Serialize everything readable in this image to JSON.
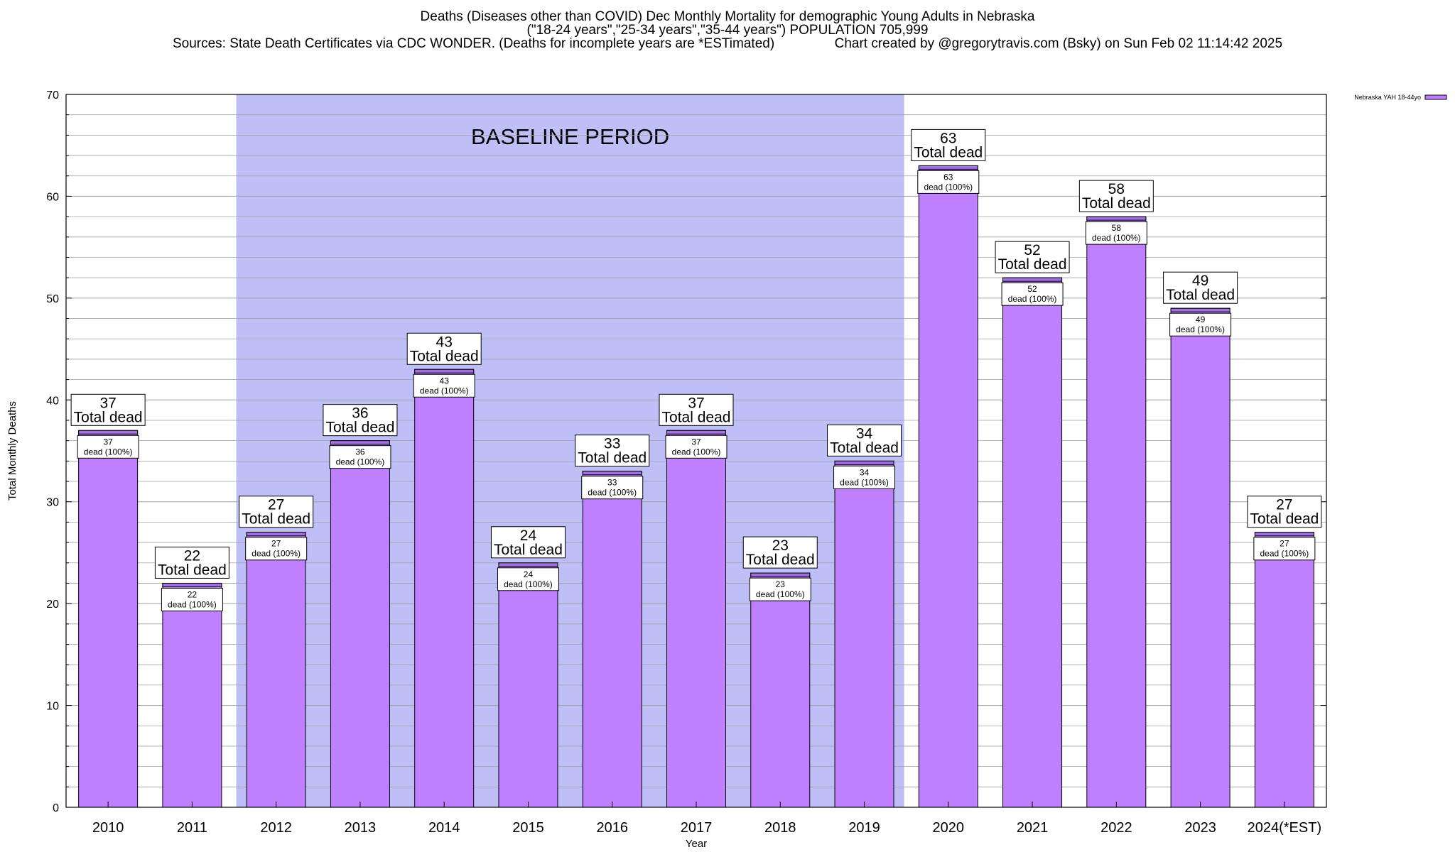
{
  "titles": {
    "line1": "Deaths (Diseases other than COVID) Dec Monthly Mortality for demographic Young Adults in Nebraska",
    "line2": "(\"18-24 years\",\"25-34 years\",\"35-44 years\") POPULATION 705,999",
    "line3": "Sources: State Death Certificates via CDC WONDER. (Deaths for incomplete years are *ESTimated)                Chart created by @gregorytravis.com (Bsky) on Sun Feb 02 11:14:42 2025"
  },
  "chart_data": {
    "type": "bar",
    "categories": [
      "2010",
      "2011",
      "2012",
      "2013",
      "2014",
      "2015",
      "2016",
      "2017",
      "2018",
      "2019",
      "2020",
      "2021",
      "2022",
      "2023",
      "2024(*EST)"
    ],
    "series": [
      {
        "name": "Nebraska YAH 18-44yo",
        "values": [
          37,
          22,
          27,
          36,
          43,
          24,
          33,
          37,
          23,
          34,
          63,
          52,
          58,
          49,
          27
        ]
      }
    ],
    "xlabel": "Year",
    "ylabel": "Total Monthly Deaths",
    "ylim": [
      0,
      70
    ],
    "yticks": [
      0,
      10,
      20,
      30,
      40,
      50,
      60,
      70
    ],
    "grid": true,
    "legend_position": "top-right",
    "baseline": {
      "label": "BASELINE PERIOD",
      "from": "2012",
      "to": "2019"
    },
    "total_label": "Total dead",
    "inner_label_suffix": "dead (100%)"
  },
  "colors": {
    "bar_fill": "#bf80ff",
    "bar_cap": "#a070e0",
    "baseline_fill": "#bfbff7",
    "grid": "#a0a0a0"
  }
}
